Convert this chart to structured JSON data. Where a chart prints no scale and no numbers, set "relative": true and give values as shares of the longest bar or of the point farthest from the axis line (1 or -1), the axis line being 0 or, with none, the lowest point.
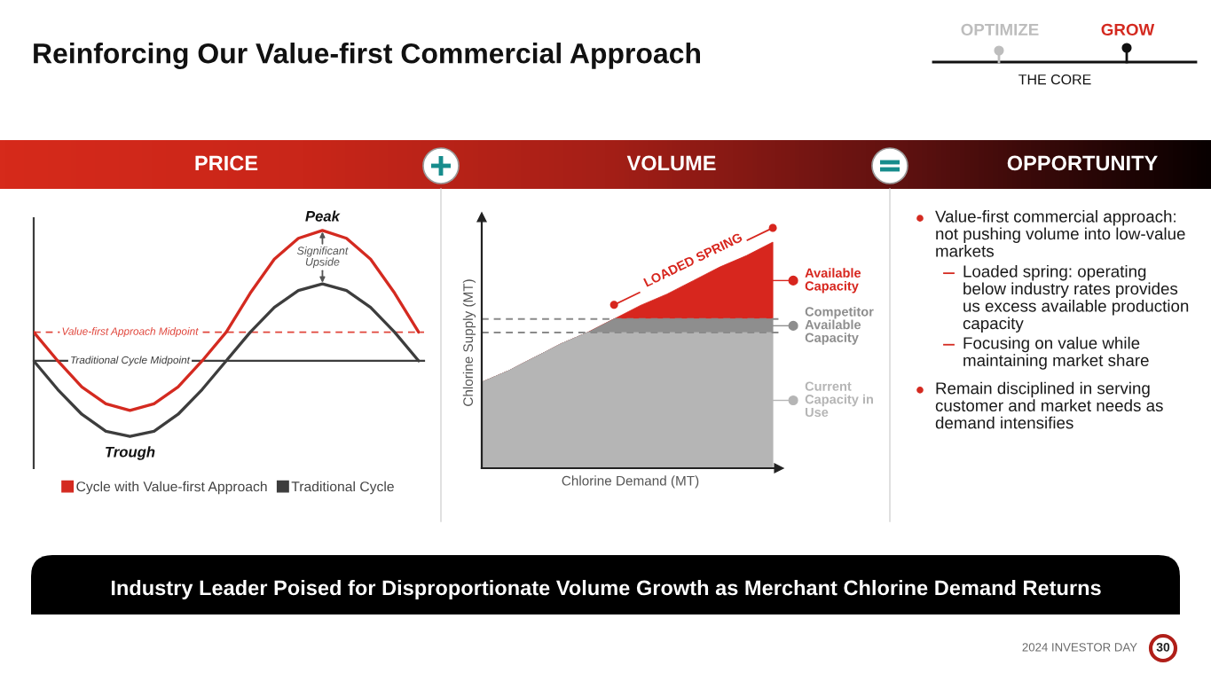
{
  "chart_data": [
    {
      "type": "other",
      "title": "Reinforcing Our Value-first Commercial Approach",
      "annotations": [
        "OPTIMIZE",
        "GROW",
        "THE CORE",
        "Industry Leader Poised for Disproportionate Volume Growth as Merchant Chlorine Demand Returns",
        "2024 INVESTOR DAY",
        "30"
      ]
    },
    {
      "type": "line",
      "title": "PRICE",
      "categories": [
        null,
        null,
        null,
        null,
        null,
        null,
        null,
        null,
        null,
        null,
        null,
        null,
        null,
        null,
        null,
        null,
        null
      ],
      "relative": true,
      "series": [
        {
          "name": "Cycle with Value-first Approach",
          "color": "#d42a20",
          "values": [
            0.22,
            0,
            -0.2,
            -0.33,
            -0.38,
            -0.33,
            -0.2,
            0,
            0.22,
            0.52,
            0.78,
            0.94,
            1.0,
            0.94,
            0.78,
            0.52,
            0.22
          ]
        },
        {
          "name": "Traditional Cycle",
          "color": "#3d3d3d",
          "values": [
            0,
            -0.22,
            -0.41,
            -0.54,
            -0.58,
            -0.54,
            -0.41,
            -0.22,
            0,
            0.22,
            0.41,
            0.54,
            0.59,
            0.54,
            0.41,
            0.22,
            0
          ]
        }
      ],
      "ref_lines": [
        {
          "axis": "y",
          "value": 0.22,
          "label": "Value-first Approach Midpoint",
          "color": "#e0453b",
          "line_style": "dashed"
        },
        {
          "axis": "y",
          "value": 0,
          "label": "Traditional Cycle Midpoint",
          "color": "#3d3d3d",
          "line_style": "solid"
        }
      ],
      "annotations": [
        {
          "text": "Peak",
          "y": 1.0
        },
        {
          "text": "Trough",
          "y": -0.58
        },
        "Significant Upside"
      ],
      "legend": "bottom"
    },
    {
      "type": "area",
      "title": "VOLUME",
      "categories": [
        null,
        null,
        null,
        null,
        null,
        null,
        null,
        null,
        null,
        null,
        null,
        null
      ],
      "relative": true,
      "stacked": true,
      "xlabel": "Chlorine Demand (MT)",
      "ylabel": "Chlorine Supply (MT)",
      "series": [
        {
          "name": "Current Capacity in Use",
          "color": "#b5b5b5",
          "values": [
            0.38,
            0.43,
            0.49,
            0.55,
            0.6,
            0.6,
            0.6,
            0.6,
            0.6,
            0.6,
            0.6,
            0.6
          ]
        },
        {
          "name": "Competitor Available Capacity",
          "color": "#8e8e8e",
          "values": [
            0,
            0,
            0,
            0,
            0,
            0.06,
            0.06,
            0.06,
            0.06,
            0.06,
            0.06,
            0.06
          ]
        },
        {
          "name": "Available Capacity",
          "color": "#d7261e",
          "values": [
            0,
            0,
            0,
            0,
            0,
            0,
            0.06,
            0.11,
            0.17,
            0.23,
            0.28,
            0.34
          ]
        }
      ],
      "ref_lines": [
        {
          "axis": "y",
          "value": 0.6,
          "color": "#8a8a8a",
          "line_style": "dashed"
        },
        {
          "axis": "y",
          "value": 0.66,
          "color": "#8a8a8a",
          "line_style": "dashed"
        }
      ],
      "annotations": [
        "LOADED SPRING"
      ],
      "legend": "right"
    },
    {
      "type": "other",
      "title": "OPPORTUNITY",
      "annotations": [
        "Value-first commercial approach: not pushing volume into low-value markets",
        "Loaded spring: operating below industry rates provides us excess available production capacity",
        "Focusing on value while maintaining market share",
        "Remain disciplined in serving customer and market needs as demand intensifies"
      ]
    }
  ]
}
